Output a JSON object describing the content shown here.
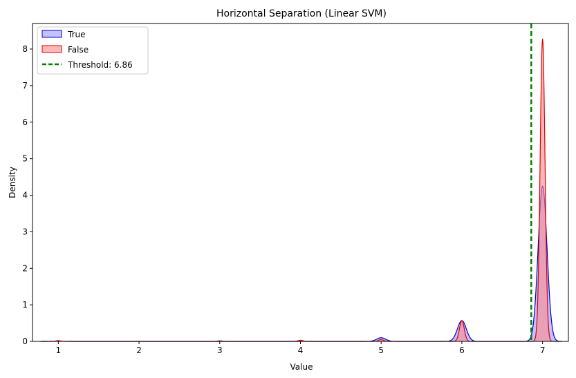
{
  "chart_data": {
    "type": "area",
    "title": "Horizontal Separation (Linear SVM)",
    "xlabel": "Value",
    "ylabel": "Density",
    "xlim": [
      0.68,
      7.32
    ],
    "ylim": [
      0,
      8.7
    ],
    "xticks": [
      1,
      2,
      3,
      4,
      5,
      6,
      7
    ],
    "yticks": [
      0,
      1,
      2,
      3,
      4,
      5,
      6,
      7,
      8
    ],
    "grid": false,
    "legend_position": "top-left",
    "threshold": {
      "label": "Threshold: 6.86",
      "x": 6.86,
      "color": "#008000",
      "style": "dashed"
    },
    "series": [
      {
        "name": "True",
        "line_color": "#0000cc",
        "fill_color": "#9999ff",
        "peaks": [
          {
            "x": 1.0,
            "height": 0.004,
            "width": 0.07
          },
          {
            "x": 5.0,
            "height": 0.1,
            "width": 0.055
          },
          {
            "x": 6.0,
            "height": 0.57,
            "width": 0.055
          },
          {
            "x": 7.0,
            "height": 4.25,
            "width": 0.055
          }
        ]
      },
      {
        "name": "False",
        "line_color": "#dd0000",
        "fill_color": "#ff8888",
        "peaks": [
          {
            "x": 1.0,
            "height": 0.02,
            "width": 0.03
          },
          {
            "x": 3.0,
            "height": 0.015,
            "width": 0.03
          },
          {
            "x": 4.0,
            "height": 0.03,
            "width": 0.03
          },
          {
            "x": 5.0,
            "height": 0.05,
            "width": 0.03
          },
          {
            "x": 6.0,
            "height": 0.57,
            "width": 0.03
          },
          {
            "x": 7.0,
            "height": 8.28,
            "width": 0.03
          }
        ]
      }
    ]
  }
}
